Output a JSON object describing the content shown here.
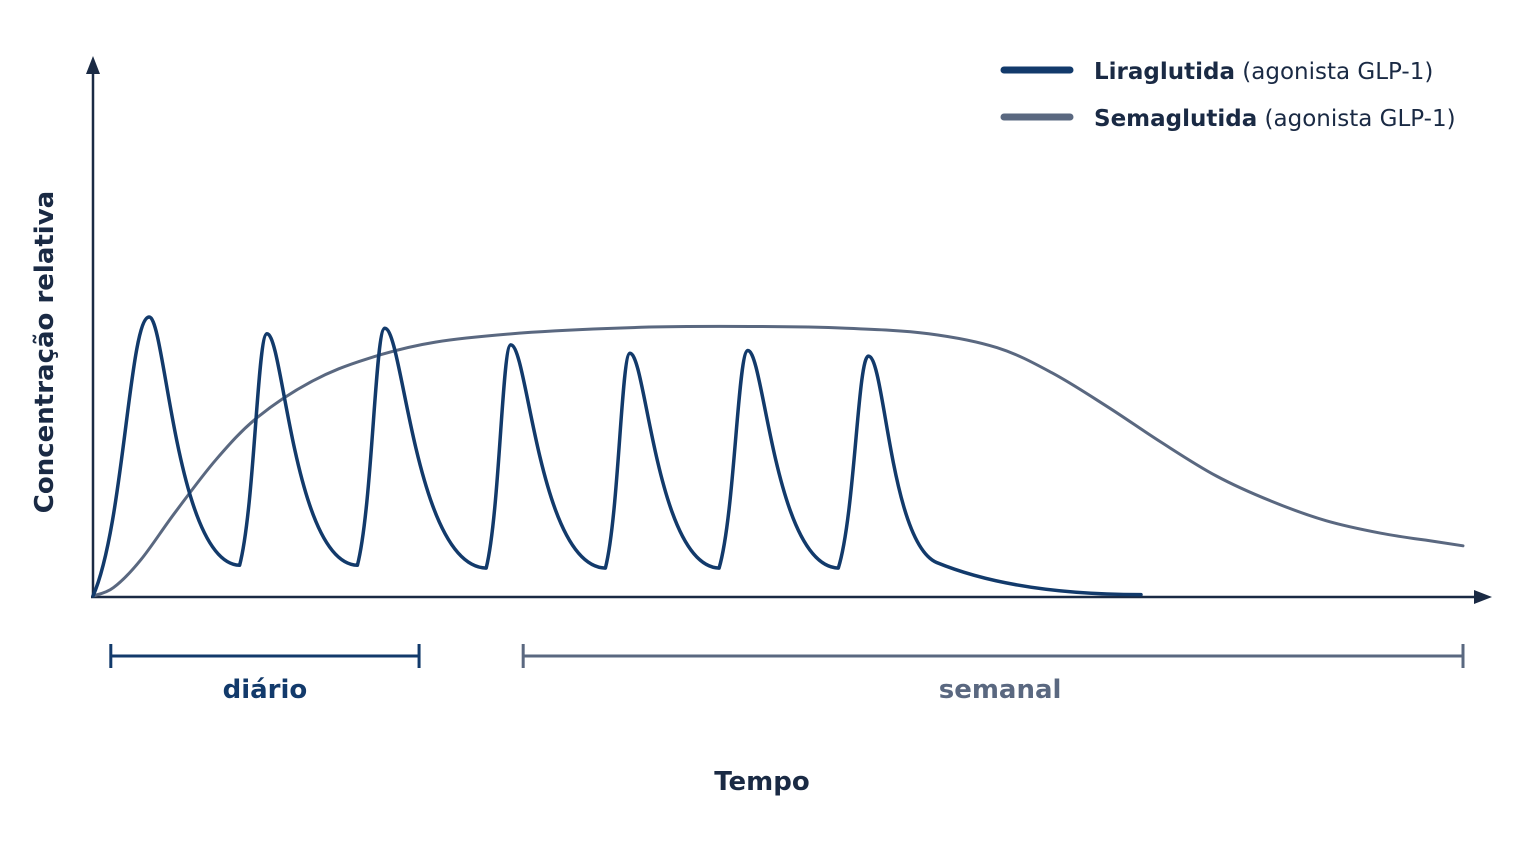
{
  "chart_data": {
    "type": "line",
    "xlabel": "Tempo",
    "ylabel": "Concentração relativa",
    "xlim": [
      0,
      100
    ],
    "ylim": [
      0,
      100
    ],
    "legend_position": "top-right",
    "series": [
      {
        "name_bold": "Liraglutida",
        "name_rest": " (agonista GLP-1)",
        "color": "#123a6b",
        "style": "daily-peaks",
        "peaks": [
          {
            "rise_start": 0.0,
            "peak_x": 4.1,
            "peak_y": 100,
            "trough_x": 10.7,
            "trough_y": 11
          },
          {
            "rise_start": 10.7,
            "peak_x": 12.7,
            "peak_y": 94,
            "trough_x": 19.3,
            "trough_y": 11
          },
          {
            "rise_start": 19.3,
            "peak_x": 21.3,
            "peak_y": 96,
            "trough_x": 28.7,
            "trough_y": 10
          },
          {
            "rise_start": 28.7,
            "peak_x": 30.5,
            "peak_y": 90,
            "trough_x": 37.4,
            "trough_y": 10
          },
          {
            "rise_start": 37.4,
            "peak_x": 39.2,
            "peak_y": 87,
            "trough_x": 45.7,
            "trough_y": 10
          },
          {
            "rise_start": 45.7,
            "peak_x": 47.8,
            "peak_y": 88,
            "trough_x": 54.4,
            "trough_y": 10
          },
          {
            "rise_start": 54.4,
            "peak_x": 56.6,
            "peak_y": 86,
            "tail_end_x": 76.5,
            "tail_end_y": 0.5
          }
        ]
      },
      {
        "name_bold": "Semaglutida",
        "name_rest": " (agonista GLP-1)",
        "color": "#5a6880",
        "style": "smooth",
        "points": [
          [
            0,
            0
          ],
          [
            1.5,
            3
          ],
          [
            3.5,
            13
          ],
          [
            6,
            30
          ],
          [
            9,
            49
          ],
          [
            12,
            64
          ],
          [
            16,
            77
          ],
          [
            20,
            85
          ],
          [
            25,
            91
          ],
          [
            32,
            94.5
          ],
          [
            40,
            96.3
          ],
          [
            48,
            96.6
          ],
          [
            55,
            96
          ],
          [
            61,
            94
          ],
          [
            66,
            89
          ],
          [
            70,
            80
          ],
          [
            74,
            68
          ],
          [
            78,
            55
          ],
          [
            82,
            43
          ],
          [
            86,
            34
          ],
          [
            90,
            27
          ],
          [
            94,
            22.5
          ],
          [
            98,
            19.5
          ],
          [
            100,
            18
          ]
        ]
      }
    ],
    "spans": [
      {
        "label": "diário",
        "x_start": 1.3,
        "x_end": 23.8,
        "color": "#123a6b"
      },
      {
        "label": "semanal",
        "x_start": 31.4,
        "x_end": 100,
        "color": "#5a6880"
      }
    ]
  }
}
